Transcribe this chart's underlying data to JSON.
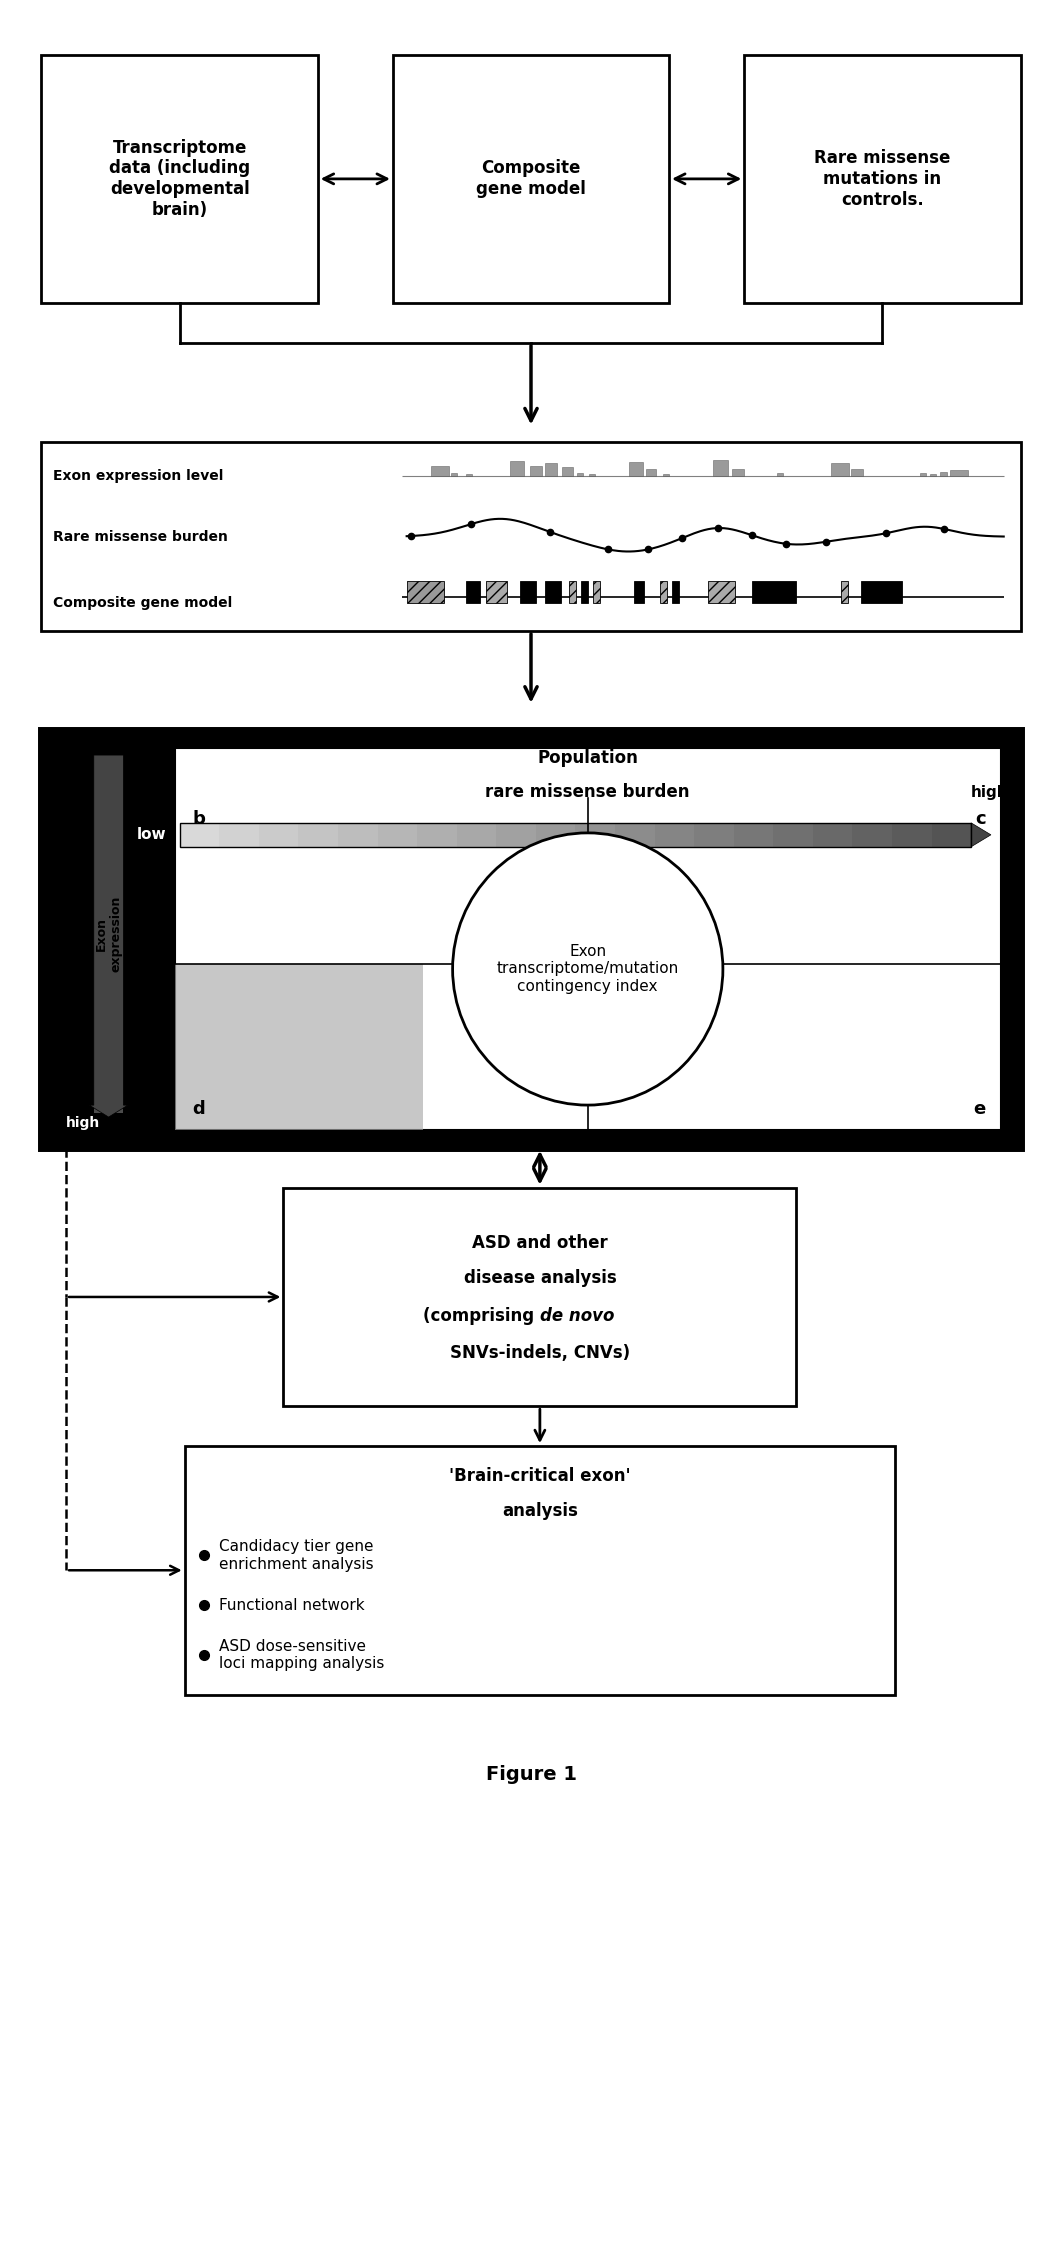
{
  "title": "Figure 1",
  "bg_color": "#ffffff",
  "box1_text": "Transcriptome\ndata (including\ndevelopmental\nbrain)",
  "box2_text": "Composite\ngene model",
  "box3_text": "Rare missense\nmutations in\ncontrols.",
  "box4_lines": [
    "Exon expression level",
    "Rare missense burden",
    "Composite gene model"
  ],
  "box5_circle_text": "Exon\ntranscriptome/mutation\ncontingency index",
  "box6_line1": "ASD and other",
  "box6_line2": "disease analysis",
  "box6_line3a": "(comprising ",
  "box6_line3b": "de novo",
  "box6_line4": "SNVs-indels, CNVs)",
  "box7_title1": "'Brain-critical exon'",
  "box7_title2": "analysis",
  "box7_bullets": [
    "Candidacy tier gene\nenrichment analysis",
    "Functional network",
    "ASD dose-sensitive\nloci mapping analysis"
  ],
  "figcaption": "Figure 1"
}
